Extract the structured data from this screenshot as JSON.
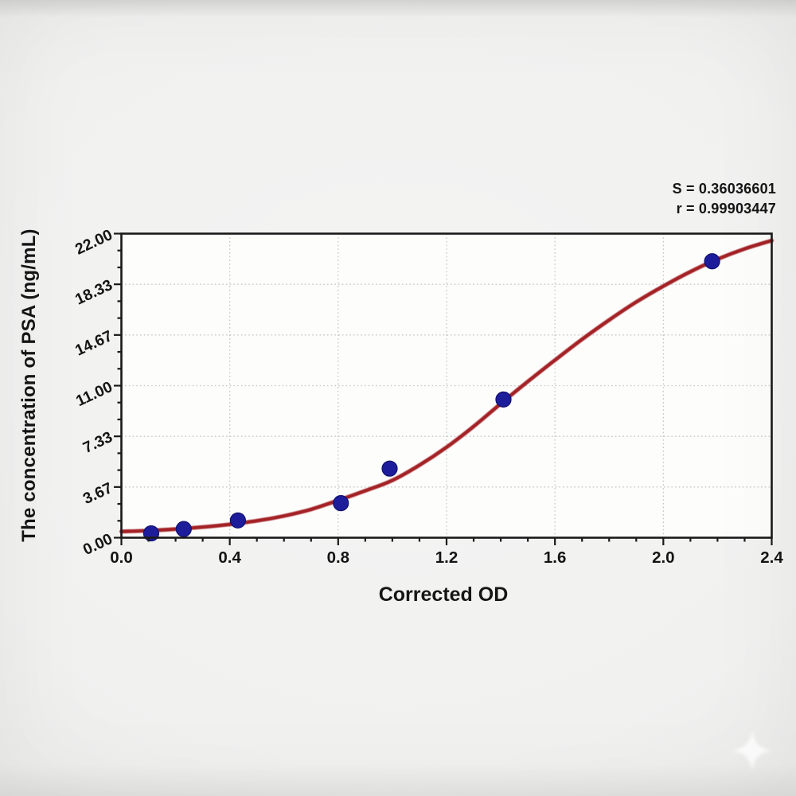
{
  "chart_data": {
    "type": "scatter",
    "title": "",
    "xlabel": "Corrected OD",
    "ylabel": "The concentration of PSA (ng/mL)",
    "xlim": [
      0,
      2.4
    ],
    "ylim": [
      0,
      22
    ],
    "x_major_ticks": [
      0,
      0.4,
      0.8,
      1.2,
      1.6,
      2.0,
      2.4
    ],
    "x_tick_labels": [
      "0.0",
      "0.4",
      "0.8",
      "1.2",
      "1.6",
      "2.0",
      "2.4"
    ],
    "x_minor_tick_step": 0.1,
    "y_major_ticks": [
      0,
      3.6667,
      7.3333,
      11,
      14.6667,
      18.3333,
      22
    ],
    "y_tick_labels": [
      "0.00",
      "3.67",
      "7.33",
      "11.00",
      "14.67",
      "18.33",
      "22.00"
    ],
    "y_minor_tick_step": 1.22222,
    "grid": {
      "show": true,
      "style": "dotted",
      "color": "#c6c6c6",
      "on_major_only": true
    },
    "legend": "none",
    "annotations": [
      "S = 0.36036601",
      "r = 0.99903447"
    ],
    "series": [
      {
        "name": "standard-points",
        "type": "scatter",
        "color": "#1d1d9c",
        "edge_color": "#10106e",
        "points": [
          {
            "x": 0.11,
            "y": 0.313
          },
          {
            "x": 0.23,
            "y": 0.625
          },
          {
            "x": 0.43,
            "y": 1.25
          },
          {
            "x": 0.81,
            "y": 2.5
          },
          {
            "x": 0.99,
            "y": 5.0
          },
          {
            "x": 1.41,
            "y": 10.0
          },
          {
            "x": 2.18,
            "y": 20.0
          }
        ]
      },
      {
        "name": "fitted-curve",
        "type": "line",
        "color": "#a32125",
        "x": [
          0,
          0.1,
          0.2,
          0.3,
          0.4,
          0.5,
          0.6,
          0.7,
          0.8,
          0.9,
          1.0,
          1.1,
          1.2,
          1.3,
          1.4,
          1.5,
          1.6,
          1.7,
          1.8,
          1.9,
          2.0,
          2.1,
          2.2,
          2.3,
          2.4
        ],
        "y": [
          0.45,
          0.51,
          0.62,
          0.77,
          0.97,
          1.22,
          1.57,
          2.05,
          2.7,
          3.4,
          4.15,
          5.25,
          6.55,
          8.05,
          9.7,
          11.3,
          12.85,
          14.35,
          15.75,
          17.05,
          18.2,
          19.25,
          20.15,
          20.9,
          21.5
        ]
      }
    ]
  },
  "style_colors": {
    "frame": "#1a1a1a",
    "plot_background": "#fdfdfc",
    "page_background": "#f1f1f0",
    "curve": "#a32125",
    "points": "#1d1d9c",
    "grid": "#c6c6c6"
  },
  "watermark": {
    "shape": "four-point-star",
    "color": "#ffffff"
  }
}
